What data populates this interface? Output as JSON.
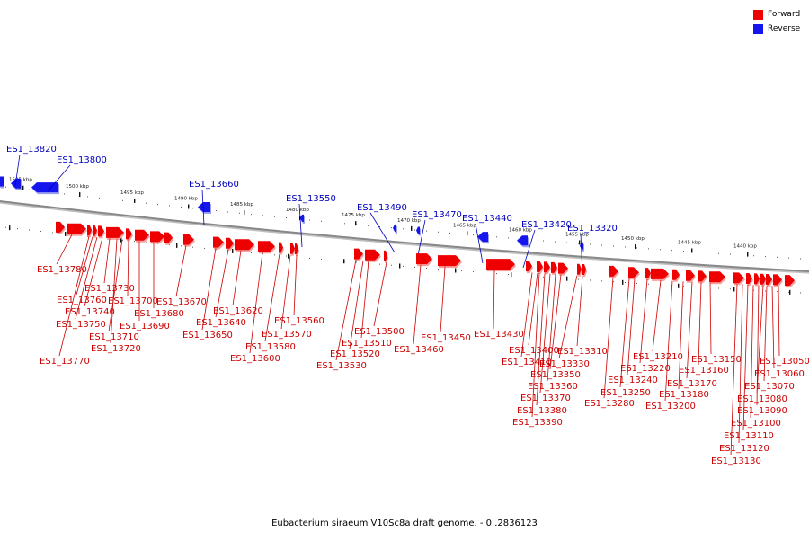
{
  "legend": {
    "forward": "Forward",
    "reverse": "Reverse"
  },
  "colors": {
    "forward": "#ee0000",
    "forward_label": "#cc0000",
    "reverse": "#1515ee",
    "reverse_label": "#0000bb",
    "axis": "#888888"
  },
  "caption": "Eubacterium siraeum V10Sc8a draft genome. - 0..2836123",
  "scale_ticks": [
    "1505 kbp",
    "1500 kbp",
    "1495 kbp",
    "1490 kbp",
    "1485 kbp",
    "1480 kbp",
    "1475 kbp",
    "1470 kbp",
    "1465 kbp",
    "1460 kbp",
    "1455 kbp",
    "1450 kbp",
    "1445 kbp",
    "1440 kbp"
  ],
  "reverse_genes": [
    "ES1_13820",
    "ES1_13800",
    "ES1_13660",
    "ES1_13550",
    "ES1_13490",
    "ES1_13470",
    "ES1_13440",
    "ES1_13420",
    "ES1_13320"
  ],
  "forward_genes": [
    "ES1_13780",
    "ES1_13770",
    "ES1_13760",
    "ES1_13750",
    "ES1_13740",
    "ES1_13730",
    "ES1_13720",
    "ES1_13710",
    "ES1_13700",
    "ES1_13690",
    "ES1_13680",
    "ES1_13670",
    "ES1_13650",
    "ES1_13640",
    "ES1_13620",
    "ES1_13600",
    "ES1_13580",
    "ES1_13570",
    "ES1_13560",
    "ES1_13530",
    "ES1_13520",
    "ES1_13510",
    "ES1_13500",
    "ES1_13460",
    "ES1_13450",
    "ES1_13430",
    "ES1_13410",
    "ES1_13400",
    "ES1_13390",
    "ES1_13380",
    "ES1_13370",
    "ES1_13360",
    "ES1_13350",
    "ES1_13330",
    "ES1_13310",
    "ES1_13280",
    "ES1_13250",
    "ES1_13240",
    "ES1_13220",
    "ES1_13210",
    "ES1_13200",
    "ES1_13180",
    "ES1_13170",
    "ES1_13160",
    "ES1_13150",
    "ES1_13130",
    "ES1_13120",
    "ES1_13110",
    "ES1_13100",
    "ES1_13090",
    "ES1_13080",
    "ES1_13070",
    "ES1_13060",
    "ES1_13050"
  ]
}
